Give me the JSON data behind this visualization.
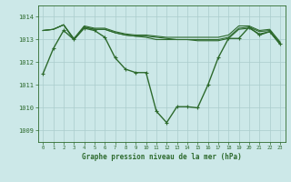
{
  "title": "Graphe pression niveau de la mer (hPa)",
  "background_color": "#cce8e8",
  "grid_color": "#aacccc",
  "line_color": "#2d6a2d",
  "xlim": [
    -0.5,
    23.5
  ],
  "ylim": [
    1008.5,
    1014.5
  ],
  "yticks": [
    1009,
    1010,
    1011,
    1012,
    1013,
    1014
  ],
  "xticks": [
    0,
    1,
    2,
    3,
    4,
    5,
    6,
    7,
    8,
    9,
    10,
    11,
    12,
    13,
    14,
    15,
    16,
    17,
    18,
    19,
    20,
    21,
    22,
    23
  ],
  "series": [
    [
      1011.5,
      1012.6,
      1013.4,
      1013.0,
      1013.5,
      1013.4,
      1013.1,
      1012.2,
      1011.7,
      1011.55,
      1011.55,
      1009.85,
      1009.35,
      1010.05,
      1010.05,
      1010.0,
      1011.0,
      1012.2,
      1013.05,
      1013.05,
      1013.55,
      1013.2,
      1013.35,
      1012.8
    ],
    [
      1013.4,
      1013.45,
      1013.65,
      1013.0,
      1013.55,
      1013.45,
      1013.45,
      1013.3,
      1013.2,
      1013.15,
      1013.1,
      1013.0,
      1013.0,
      1013.0,
      1013.0,
      1012.95,
      1012.95,
      1012.95,
      1013.05,
      1013.45,
      1013.5,
      1013.25,
      1013.35,
      1012.8
    ],
    [
      1013.4,
      1013.45,
      1013.65,
      1013.0,
      1013.55,
      1013.45,
      1013.45,
      1013.3,
      1013.2,
      1013.15,
      1013.15,
      1013.1,
      1013.05,
      1013.0,
      1013.0,
      1013.0,
      1013.0,
      1013.0,
      1013.1,
      1013.5,
      1013.55,
      1013.35,
      1013.4,
      1012.85
    ],
    [
      1013.4,
      1013.45,
      1013.65,
      1013.05,
      1013.6,
      1013.5,
      1013.5,
      1013.35,
      1013.25,
      1013.2,
      1013.2,
      1013.15,
      1013.1,
      1013.1,
      1013.1,
      1013.1,
      1013.1,
      1013.1,
      1013.2,
      1013.6,
      1013.6,
      1013.4,
      1013.45,
      1012.9
    ]
  ],
  "series_linewidths": [
    1.0,
    0.8,
    0.8,
    0.8
  ],
  "series_has_markers": [
    true,
    false,
    false,
    false
  ],
  "xlabel_fontsize": 5.5,
  "ytick_fontsize": 5.0,
  "xtick_fontsize": 4.0
}
